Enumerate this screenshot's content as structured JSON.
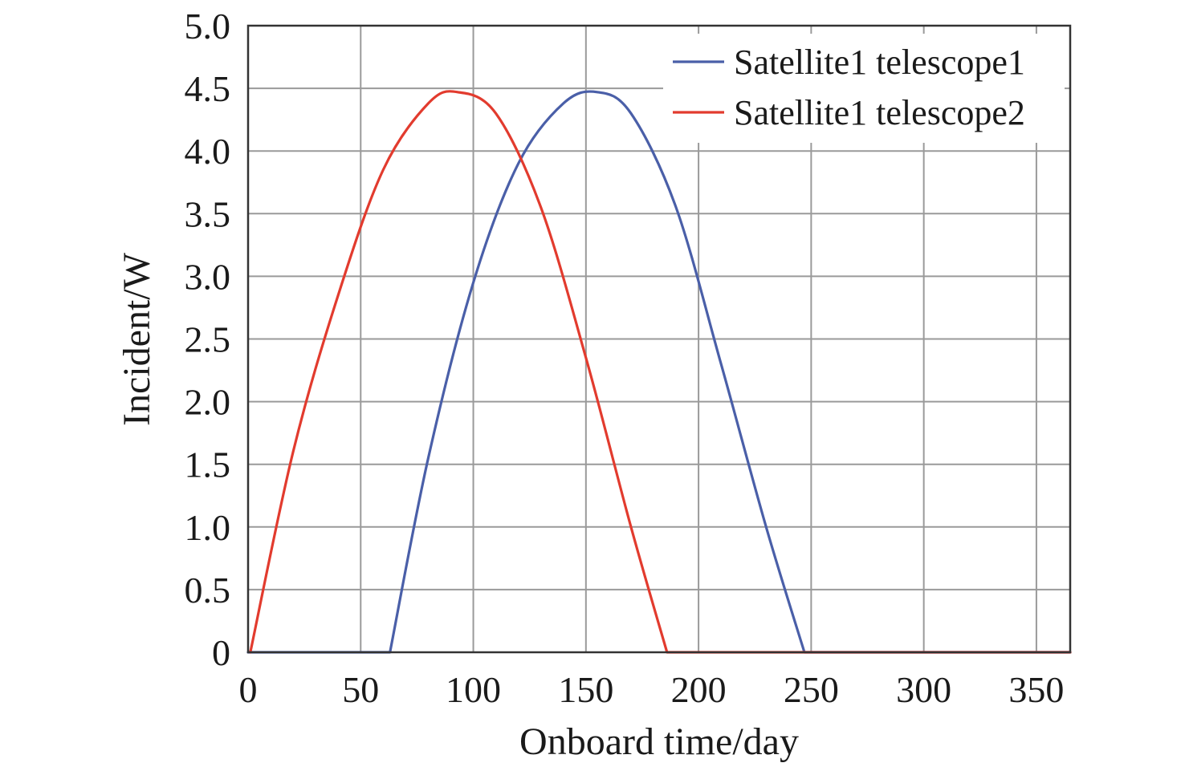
{
  "chart_data": {
    "type": "line",
    "xlabel": "Onboard time/day",
    "ylabel": "Incident/W",
    "xlim": [
      0,
      365
    ],
    "ylim": [
      0,
      5
    ],
    "xticks": [
      0,
      50,
      100,
      150,
      200,
      250,
      300,
      350
    ],
    "yticks": [
      0,
      0.5,
      1.0,
      1.5,
      2.0,
      2.5,
      3.0,
      3.5,
      4.0,
      4.5,
      5.0
    ],
    "xtick_labels": [
      "0",
      "50",
      "100",
      "150",
      "200",
      "250",
      "300",
      "350"
    ],
    "ytick_labels": [
      "0",
      "0.5",
      "1.0",
      "1.5",
      "2.0",
      "2.5",
      "3.0",
      "3.5",
      "4.0",
      "4.5",
      "5.0"
    ],
    "grid": true,
    "legend_position": "top-right",
    "series": [
      {
        "name": "Satellite1 telescope1",
        "color": "#4a5fa8",
        "x": [
          0,
          63,
          80,
          100,
          120,
          140,
          155,
          170,
          190,
          210,
          230,
          247,
          365
        ],
        "y": [
          0,
          0,
          1.55,
          2.95,
          3.9,
          4.38,
          4.47,
          4.3,
          3.55,
          2.3,
          1.0,
          0,
          0
        ]
      },
      {
        "name": "Satellite1 telescope2",
        "color": "#e23b2e",
        "x": [
          1,
          20,
          40,
          60,
          80,
          93,
          110,
          130,
          150,
          170,
          186,
          365
        ],
        "y": [
          0,
          1.6,
          2.85,
          3.85,
          4.38,
          4.47,
          4.3,
          3.55,
          2.35,
          1.0,
          0,
          0
        ]
      }
    ]
  }
}
